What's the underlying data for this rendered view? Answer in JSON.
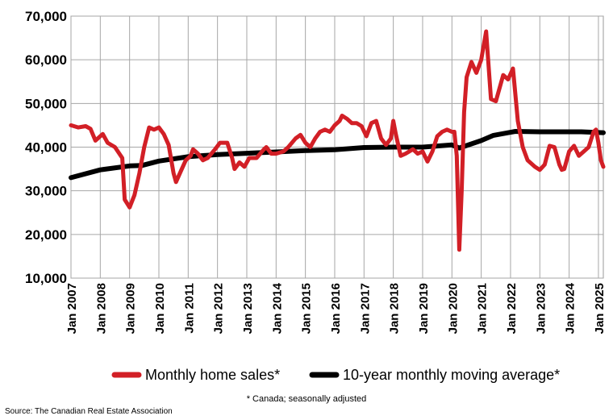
{
  "chart_data": {
    "type": "line",
    "ylim": [
      10000,
      70000
    ],
    "xlim": [
      "2007-01",
      "2025-03"
    ],
    "y_ticks": [
      {
        "value": 10000,
        "label": "10,000"
      },
      {
        "value": 20000,
        "label": "20,000"
      },
      {
        "value": 30000,
        "label": "30,000"
      },
      {
        "value": 40000,
        "label": "40,000"
      },
      {
        "value": 50000,
        "label": "50,000"
      },
      {
        "value": 60000,
        "label": "60,000"
      },
      {
        "value": 70000,
        "label": "70,000"
      }
    ],
    "x_ticks": [
      {
        "date": "2007-01",
        "label": "Jan 2007"
      },
      {
        "date": "2008-01",
        "label": "Jan 2008"
      },
      {
        "date": "2009-01",
        "label": "Jan 2009"
      },
      {
        "date": "2010-01",
        "label": "Jan 2010"
      },
      {
        "date": "2011-01",
        "label": "Jan 2011"
      },
      {
        "date": "2012-01",
        "label": "Jan 2012"
      },
      {
        "date": "2013-01",
        "label": "Jan 2013"
      },
      {
        "date": "2014-01",
        "label": "Jan 2014"
      },
      {
        "date": "2015-01",
        "label": "Jan 2015"
      },
      {
        "date": "2016-01",
        "label": "Jan 2016"
      },
      {
        "date": "2017-01",
        "label": "Jan 2017"
      },
      {
        "date": "2018-01",
        "label": "Jan 2018"
      },
      {
        "date": "2019-01",
        "label": "Jan 2019"
      },
      {
        "date": "2020-01",
        "label": "Jan 2020"
      },
      {
        "date": "2021-01",
        "label": "Jan 2021"
      },
      {
        "date": "2022-01",
        "label": "Jan 2022"
      },
      {
        "date": "2023-01",
        "label": "Jan 2023"
      },
      {
        "date": "2024-01",
        "label": "Jan 2024"
      },
      {
        "date": "2025-01",
        "label": "Jan 2025"
      }
    ],
    "grid": true,
    "legend_position": "bottom",
    "series": [
      {
        "name": "Monthly home sales*",
        "color": "#d21f26",
        "points": [
          [
            "2007-01",
            45000
          ],
          [
            "2007-04",
            44500
          ],
          [
            "2007-07",
            44800
          ],
          [
            "2007-09",
            44200
          ],
          [
            "2007-11",
            41500
          ],
          [
            "2008-02",
            43000
          ],
          [
            "2008-04",
            41000
          ],
          [
            "2008-07",
            40000
          ],
          [
            "2008-10",
            37500
          ],
          [
            "2008-11",
            28000
          ],
          [
            "2009-01",
            26200
          ],
          [
            "2009-03",
            29000
          ],
          [
            "2009-05",
            34000
          ],
          [
            "2009-07",
            40000
          ],
          [
            "2009-09",
            44500
          ],
          [
            "2009-11",
            44000
          ],
          [
            "2010-01",
            44500
          ],
          [
            "2010-03",
            43000
          ],
          [
            "2010-05",
            40500
          ],
          [
            "2010-07",
            34000
          ],
          [
            "2010-08",
            32000
          ],
          [
            "2010-10",
            34500
          ],
          [
            "2010-12",
            37000
          ],
          [
            "2011-02",
            38000
          ],
          [
            "2011-03",
            39500
          ],
          [
            "2011-05",
            38500
          ],
          [
            "2011-07",
            37000
          ],
          [
            "2011-09",
            37500
          ],
          [
            "2011-12",
            39500
          ],
          [
            "2012-02",
            41000
          ],
          [
            "2012-05",
            41000
          ],
          [
            "2012-07",
            37500
          ],
          [
            "2012-08",
            35000
          ],
          [
            "2012-10",
            36500
          ],
          [
            "2012-12",
            35500
          ],
          [
            "2013-02",
            37500
          ],
          [
            "2013-05",
            37500
          ],
          [
            "2013-08",
            39500
          ],
          [
            "2013-09",
            40000
          ],
          [
            "2013-11",
            38500
          ],
          [
            "2014-01",
            38500
          ],
          [
            "2014-04",
            39000
          ],
          [
            "2014-06",
            40000
          ],
          [
            "2014-09",
            42000
          ],
          [
            "2014-11",
            42800
          ],
          [
            "2015-01",
            41000
          ],
          [
            "2015-03",
            40000
          ],
          [
            "2015-05",
            42000
          ],
          [
            "2015-07",
            43500
          ],
          [
            "2015-09",
            44000
          ],
          [
            "2015-11",
            43500
          ],
          [
            "2016-01",
            45000
          ],
          [
            "2016-03",
            46000
          ],
          [
            "2016-04",
            47200
          ],
          [
            "2016-06",
            46500
          ],
          [
            "2016-08",
            45500
          ],
          [
            "2016-10",
            45500
          ],
          [
            "2016-12",
            44800
          ],
          [
            "2017-02",
            42500
          ],
          [
            "2017-04",
            45500
          ],
          [
            "2017-06",
            46000
          ],
          [
            "2017-08",
            42000
          ],
          [
            "2017-10",
            40500
          ],
          [
            "2017-12",
            42000
          ],
          [
            "2018-01",
            46000
          ],
          [
            "2018-02",
            43000
          ],
          [
            "2018-04",
            38000
          ],
          [
            "2018-06",
            38500
          ],
          [
            "2018-09",
            39500
          ],
          [
            "2018-11",
            38500
          ],
          [
            "2019-01",
            39000
          ],
          [
            "2019-03",
            36700
          ],
          [
            "2019-05",
            39000
          ],
          [
            "2019-07",
            42500
          ],
          [
            "2019-09",
            43500
          ],
          [
            "2019-11",
            44000
          ],
          [
            "2020-01",
            43500
          ],
          [
            "2020-02",
            43500
          ],
          [
            "2020-03",
            38000
          ],
          [
            "2020-04",
            16500
          ],
          [
            "2020-05",
            30000
          ],
          [
            "2020-06",
            48000
          ],
          [
            "2020-07",
            56000
          ],
          [
            "2020-09",
            59500
          ],
          [
            "2020-11",
            57000
          ],
          [
            "2021-01",
            60000
          ],
          [
            "2021-03",
            66500
          ],
          [
            "2021-05",
            51000
          ],
          [
            "2021-07",
            50500
          ],
          [
            "2021-10",
            56500
          ],
          [
            "2021-12",
            55500
          ],
          [
            "2022-02",
            58000
          ],
          [
            "2022-04",
            46000
          ],
          [
            "2022-06",
            40000
          ],
          [
            "2022-08",
            37000
          ],
          [
            "2022-11",
            35500
          ],
          [
            "2023-01",
            34800
          ],
          [
            "2023-03",
            36000
          ],
          [
            "2023-05",
            40300
          ],
          [
            "2023-07",
            40000
          ],
          [
            "2023-09",
            36000
          ],
          [
            "2023-10",
            34800
          ],
          [
            "2023-11",
            35000
          ],
          [
            "2024-01",
            39000
          ],
          [
            "2024-03",
            40300
          ],
          [
            "2024-05",
            38000
          ],
          [
            "2024-07",
            39000
          ],
          [
            "2024-09",
            40000
          ],
          [
            "2024-11",
            43500
          ],
          [
            "2024-12",
            44000
          ],
          [
            "2025-01",
            41000
          ],
          [
            "2025-02",
            37000
          ],
          [
            "2025-03",
            35500
          ]
        ]
      },
      {
        "name": "10-year monthly moving average*",
        "color": "#000000",
        "points": [
          [
            "2007-01",
            33000
          ],
          [
            "2008-01",
            34800
          ],
          [
            "2009-01",
            35700
          ],
          [
            "2009-06",
            35800
          ],
          [
            "2010-01",
            36800
          ],
          [
            "2011-01",
            37800
          ],
          [
            "2012-01",
            38300
          ],
          [
            "2013-01",
            38600
          ],
          [
            "2014-01",
            38900
          ],
          [
            "2015-01",
            39200
          ],
          [
            "2016-01",
            39400
          ],
          [
            "2017-01",
            39900
          ],
          [
            "2018-01",
            40000
          ],
          [
            "2019-01",
            40000
          ],
          [
            "2020-01",
            40500
          ],
          [
            "2020-04",
            39800
          ],
          [
            "2021-01",
            41500
          ],
          [
            "2021-06",
            42700
          ],
          [
            "2022-01",
            43400
          ],
          [
            "2022-03",
            43600
          ],
          [
            "2023-01",
            43500
          ],
          [
            "2024-01",
            43500
          ],
          [
            "2024-06",
            43500
          ],
          [
            "2025-03",
            43300
          ]
        ]
      }
    ]
  },
  "footnote": "* Canada; seasonally adjusted",
  "source": "Source: The Canadian Real Estate Association"
}
